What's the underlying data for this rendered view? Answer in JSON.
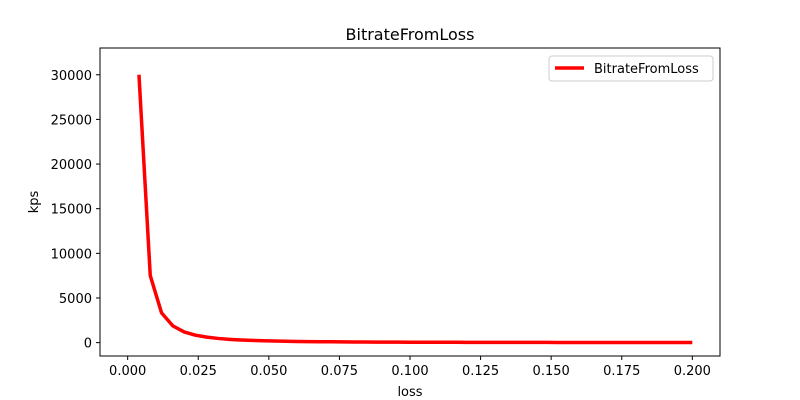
{
  "chart_data": {
    "type": "line",
    "title": "BitrateFromLoss",
    "xlabel": "loss",
    "ylabel": "kps",
    "xlim": [
      -0.0098,
      0.2098
    ],
    "ylim": [
      -1498,
      32998
    ],
    "x_ticks": [
      0.0,
      0.025,
      0.05,
      0.075,
      0.1,
      0.125,
      0.15,
      0.175,
      0.2
    ],
    "x_tick_labels": [
      "0.000",
      "0.025",
      "0.050",
      "0.075",
      "0.100",
      "0.125",
      "0.150",
      "0.175",
      "0.200"
    ],
    "y_ticks": [
      0,
      5000,
      10000,
      15000,
      20000,
      25000,
      30000
    ],
    "y_tick_labels": [
      "0",
      "5000",
      "10000",
      "15000",
      "20000",
      "25000",
      "30000"
    ],
    "grid": false,
    "legend_position": "top-right",
    "series": [
      {
        "name": "BitrateFromLoss",
        "color": "#ff0000",
        "x": [
          0.004,
          0.008,
          0.012,
          0.016,
          0.02,
          0.024,
          0.028,
          0.032,
          0.036,
          0.04,
          0.044,
          0.048,
          0.052,
          0.056,
          0.06,
          0.064,
          0.068,
          0.072,
          0.076,
          0.08,
          0.084,
          0.088,
          0.092,
          0.096,
          0.1,
          0.104,
          0.108,
          0.112,
          0.116,
          0.12,
          0.124,
          0.128,
          0.132,
          0.136,
          0.14,
          0.144,
          0.148,
          0.152,
          0.156,
          0.16,
          0.164,
          0.168,
          0.172,
          0.176,
          0.18,
          0.184,
          0.188,
          0.192,
          0.196,
          0.2
        ],
        "y": [
          30000,
          7500,
          3333,
          1875,
          1200,
          833,
          612,
          469,
          370,
          300,
          248,
          208,
          178,
          153,
          133,
          117,
          104,
          93,
          83,
          75,
          68,
          62,
          57,
          52,
          48,
          44,
          41,
          38,
          36,
          33,
          31,
          29,
          28,
          26,
          24,
          23,
          22,
          21,
          20,
          19,
          18,
          17,
          16,
          15,
          15,
          14,
          14,
          13,
          12,
          12
        ]
      }
    ]
  }
}
